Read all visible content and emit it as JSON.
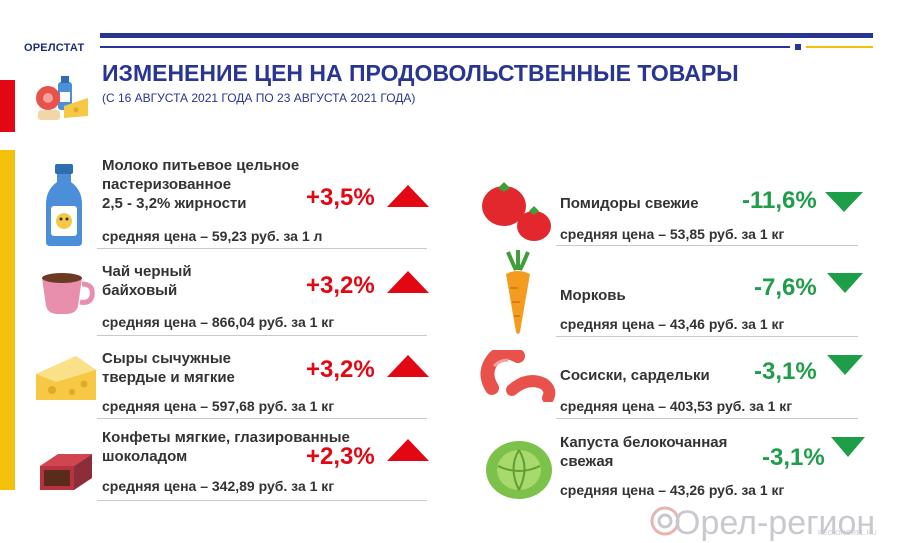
{
  "header": {
    "org": "ОРЕЛСТАТ",
    "title": "ИЗМЕНЕНИЕ ЦЕН НА ПРОДОВОЛЬСТВЕННЫЕ ТОВАРЫ",
    "subtitle": "(С 16 АВГУСТА 2021 ГОДА ПО 23 АВГУСТА 2021 ГОДА)"
  },
  "colors": {
    "navy": "#283593",
    "red": "#e30613",
    "green": "#1f9e4a",
    "gold": "#f4c20d"
  },
  "left_items": [
    {
      "name_lines": [
        "Молоко питьевое цельное",
        "пастеризованное",
        "2,5 - 3,2% жирности"
      ],
      "change": "+3,5%",
      "direction": "up",
      "price": "средняя цена – 59,23 руб. за 1 л",
      "icon": "milk-bottle-icon"
    },
    {
      "name_lines": [
        "Чай черный",
        "байховый"
      ],
      "change": "+3,2%",
      "direction": "up",
      "price": "средняя цена –  866,04 руб. за 1 кг",
      "icon": "tea-cup-icon"
    },
    {
      "name_lines": [
        "Сыры сычужные",
        "твердые и мягкие"
      ],
      "change": "+3,2%",
      "direction": "up",
      "price": "средняя цена – 597,68 руб. за 1 кг",
      "icon": "cheese-icon"
    },
    {
      "name_lines": [
        "Конфеты мягкие, глазированные",
        "шоколадом"
      ],
      "change": "+2,3%",
      "direction": "up",
      "price": "средняя цена – 342,89 руб. за 1 кг",
      "icon": "candy-icon"
    }
  ],
  "right_items": [
    {
      "name_lines": [
        "Помидоры свежие"
      ],
      "change": "-11,6%",
      "direction": "down",
      "price": "средняя цена – 53,85 руб. за 1 кг",
      "icon": "tomato-icon"
    },
    {
      "name_lines": [
        "Морковь"
      ],
      "change": "-7,6%",
      "direction": "down",
      "price": "средняя цена – 43,46 руб. за 1 кг",
      "icon": "carrot-icon"
    },
    {
      "name_lines": [
        "Сосиски, сардельки"
      ],
      "change": "-3,1%",
      "direction": "down",
      "price": "средняя цена – 403,53 руб. за 1 кг",
      "icon": "sausage-icon"
    },
    {
      "name_lines": [
        "Капуста белокочанная",
        "свежая"
      ],
      "change": "-3,1%",
      "direction": "down",
      "price": "средняя цена – 43,26 руб. за 1 кг",
      "icon": "cabbage-icon"
    }
  ],
  "watermark": {
    "text": "Орел-регион",
    "sub": "REGIONOREL.RU"
  }
}
